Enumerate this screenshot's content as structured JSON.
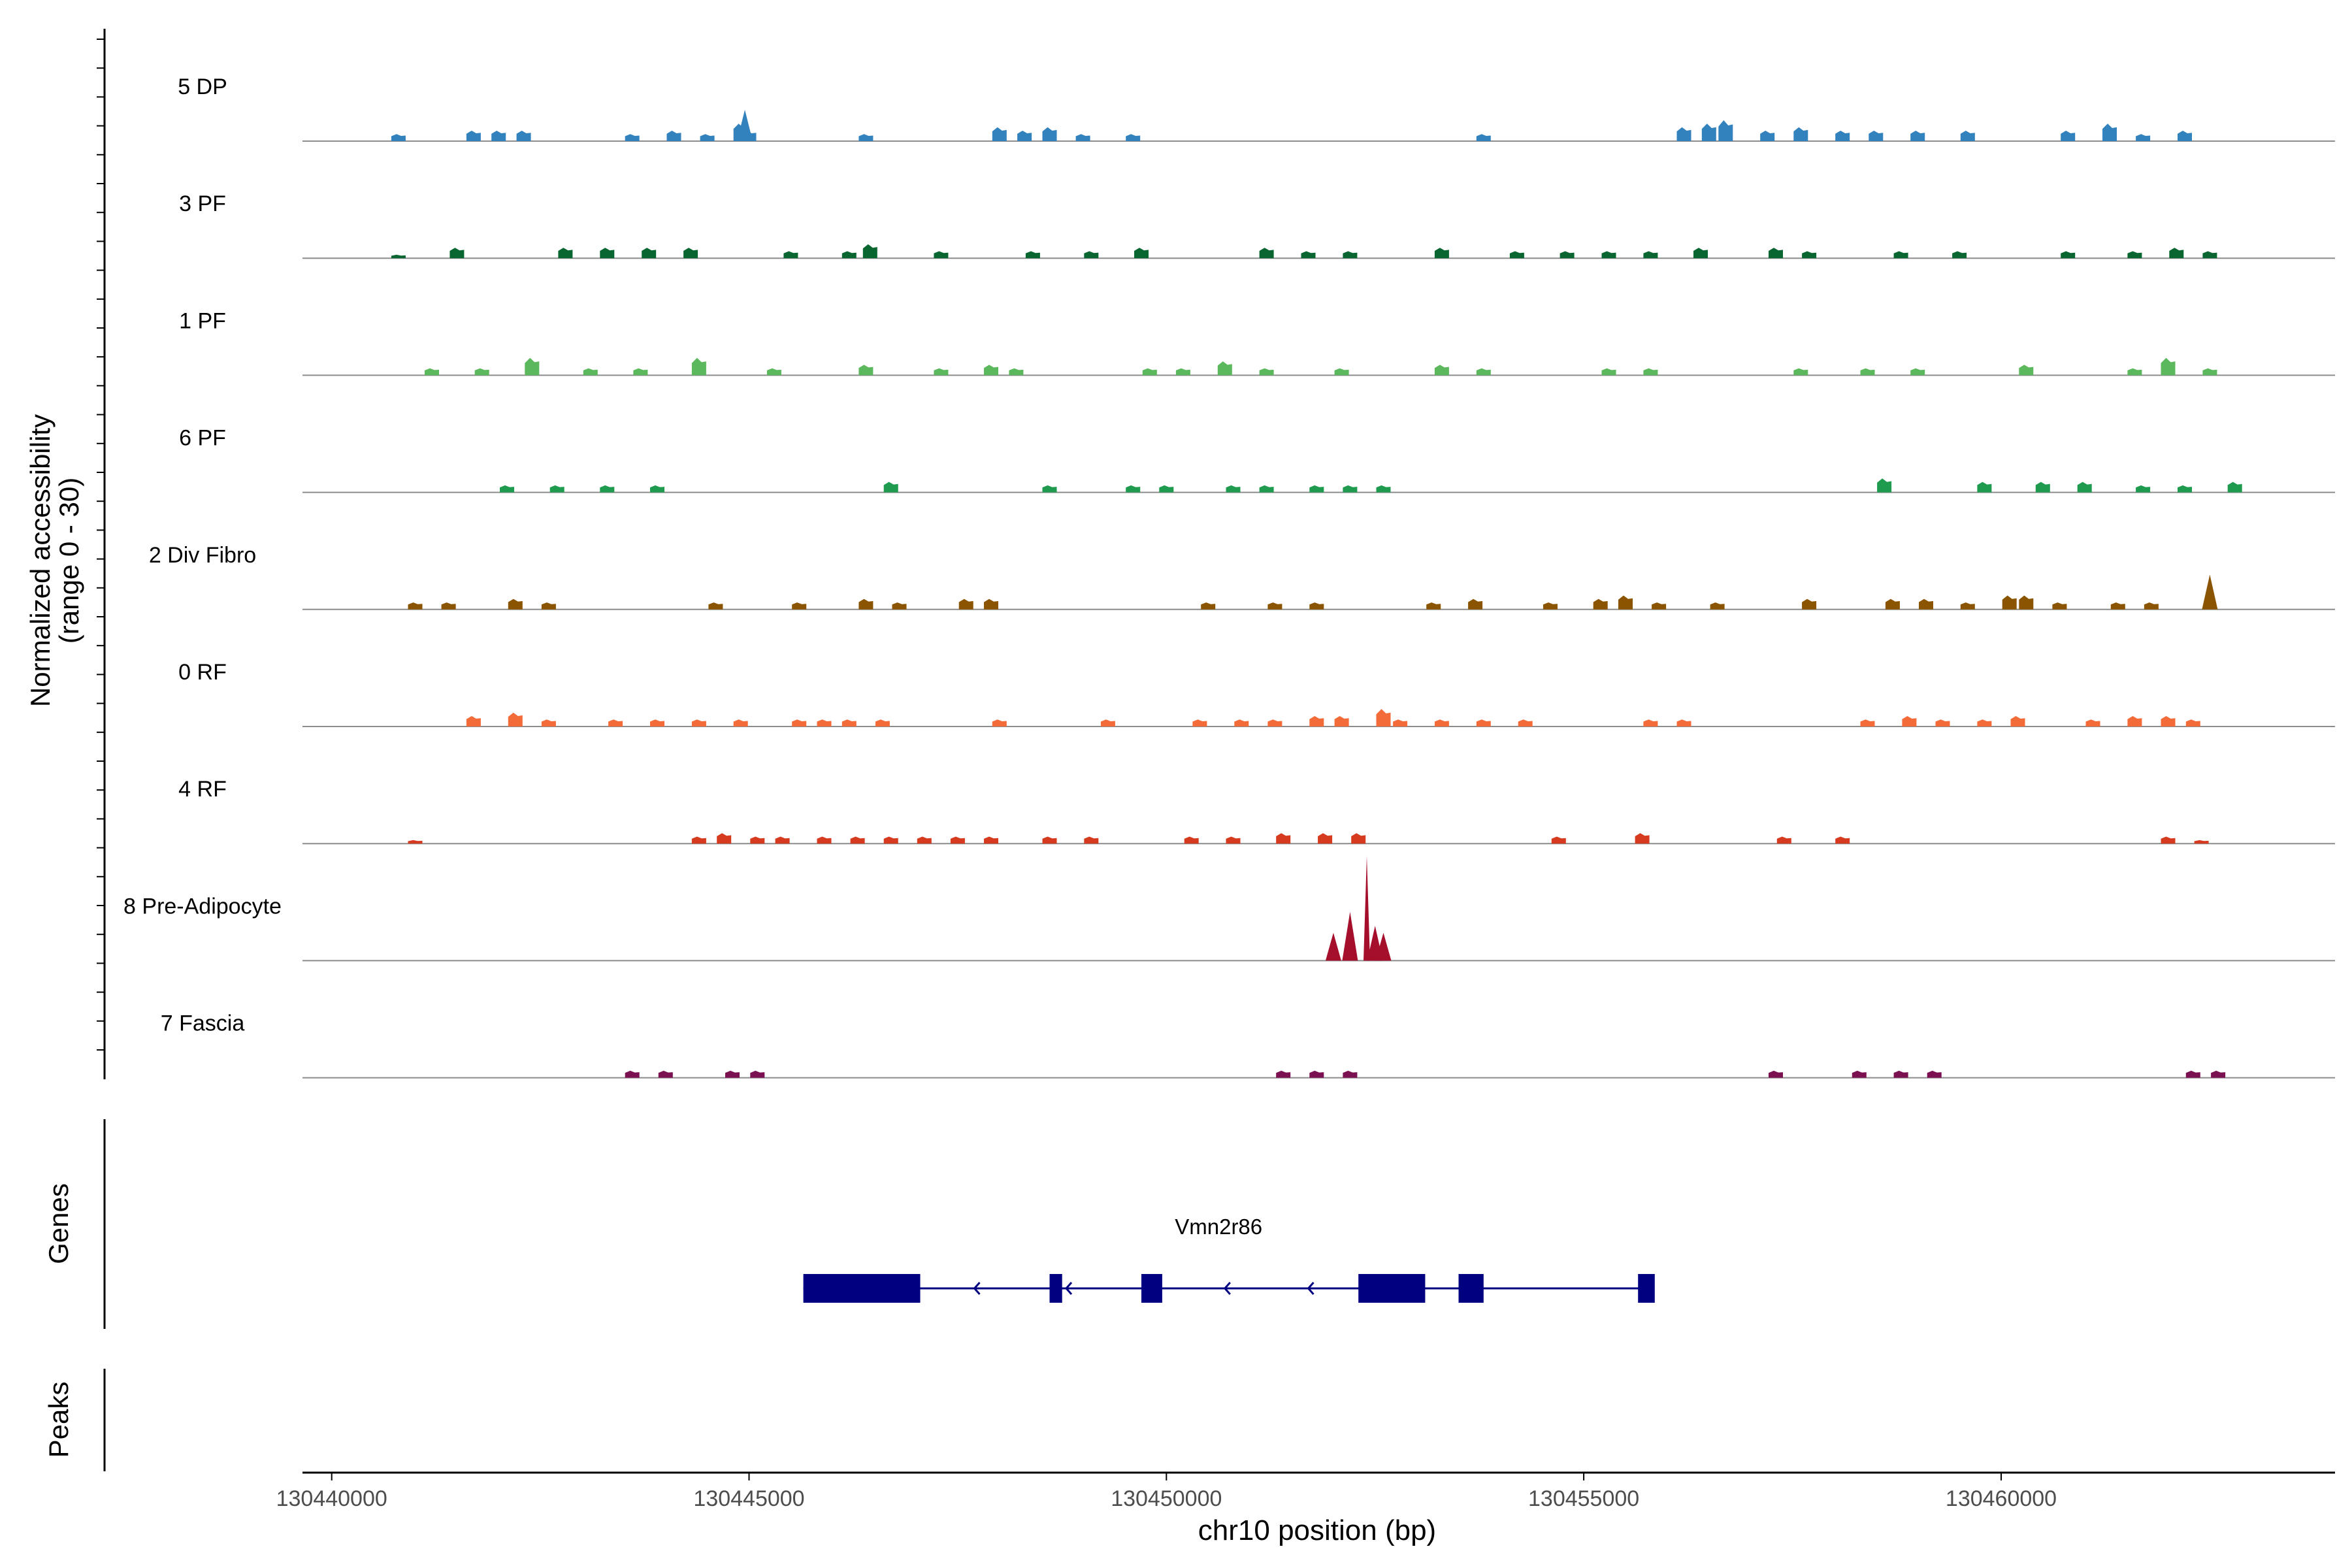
{
  "chart_data": {
    "type": "area",
    "title": "",
    "ylabel": "Normalized accessibility",
    "ylabel_range": "(range 0 - 30)",
    "ylim": [
      0,
      30
    ],
    "xlabel": "chr10 position (bp)",
    "xlim": [
      130439650,
      130464000
    ],
    "x_ticks": [
      130440000,
      130445000,
      130450000,
      130455000,
      130460000
    ],
    "x_tick_labels": [
      "130440000",
      "130445000",
      "130450000",
      "130455000",
      "130460000"
    ],
    "tracks": [
      {
        "name": "5 DP",
        "color": "#3282BD",
        "peaks": [
          [
            130440800,
            2
          ],
          [
            130441700,
            3
          ],
          [
            130442000,
            3
          ],
          [
            130442300,
            3
          ],
          [
            130443600,
            2
          ],
          [
            130444100,
            3
          ],
          [
            130444500,
            2
          ],
          [
            130444900,
            5
          ],
          [
            130444950,
            9
          ],
          [
            130445000,
            3
          ],
          [
            130446400,
            2
          ],
          [
            130448000,
            4
          ],
          [
            130448300,
            3
          ],
          [
            130448600,
            4
          ],
          [
            130449000,
            2
          ],
          [
            130449600,
            2
          ],
          [
            130453800,
            2
          ],
          [
            130456200,
            4
          ],
          [
            130456500,
            5
          ],
          [
            130456700,
            6
          ],
          [
            130457200,
            3
          ],
          [
            130457600,
            4
          ],
          [
            130458100,
            3
          ],
          [
            130458500,
            3
          ],
          [
            130459000,
            3
          ],
          [
            130459600,
            3
          ],
          [
            130460800,
            3
          ],
          [
            130461300,
            5
          ],
          [
            130461700,
            2
          ],
          [
            130462200,
            3
          ]
        ]
      },
      {
        "name": "3 PF",
        "color": "#0A6630",
        "peaks": [
          [
            130440800,
            1
          ],
          [
            130441500,
            3
          ],
          [
            130442800,
            3
          ],
          [
            130443300,
            3
          ],
          [
            130443800,
            3
          ],
          [
            130444300,
            3
          ],
          [
            130445500,
            2
          ],
          [
            130446200,
            2
          ],
          [
            130446450,
            4
          ],
          [
            130447300,
            2
          ],
          [
            130448400,
            2
          ],
          [
            130449100,
            2
          ],
          [
            130449700,
            3
          ],
          [
            130451200,
            3
          ],
          [
            130451700,
            2
          ],
          [
            130452200,
            2
          ],
          [
            130453300,
            3
          ],
          [
            130454200,
            2
          ],
          [
            130454800,
            2
          ],
          [
            130455300,
            2
          ],
          [
            130455800,
            2
          ],
          [
            130456400,
            3
          ],
          [
            130457300,
            3
          ],
          [
            130457700,
            2
          ],
          [
            130458800,
            2
          ],
          [
            130459500,
            2
          ],
          [
            130460800,
            2
          ],
          [
            130461600,
            2
          ],
          [
            130462100,
            3
          ],
          [
            130462500,
            2
          ]
        ]
      },
      {
        "name": "1 PF",
        "color": "#5CB85C",
        "peaks": [
          [
            130441200,
            2
          ],
          [
            130441800,
            2
          ],
          [
            130442400,
            5
          ],
          [
            130443100,
            2
          ],
          [
            130443700,
            2
          ],
          [
            130444400,
            5
          ],
          [
            130445300,
            2
          ],
          [
            130446400,
            3
          ],
          [
            130447300,
            2
          ],
          [
            130447900,
            3
          ],
          [
            130448200,
            2
          ],
          [
            130449800,
            2
          ],
          [
            130450200,
            2
          ],
          [
            130450700,
            4
          ],
          [
            130451200,
            2
          ],
          [
            130452100,
            2
          ],
          [
            130453300,
            3
          ],
          [
            130453800,
            2
          ],
          [
            130455300,
            2
          ],
          [
            130455800,
            2
          ],
          [
            130457600,
            2
          ],
          [
            130458400,
            2
          ],
          [
            130459000,
            2
          ],
          [
            130460300,
            3
          ],
          [
            130461600,
            2
          ],
          [
            130462000,
            5
          ],
          [
            130462500,
            2
          ]
        ]
      },
      {
        "name": "6 PF",
        "color": "#1F9B4F",
        "peaks": [
          [
            130442100,
            2
          ],
          [
            130442700,
            2
          ],
          [
            130443300,
            2
          ],
          [
            130443900,
            2
          ],
          [
            130446700,
            3
          ],
          [
            130448600,
            2
          ],
          [
            130449600,
            2
          ],
          [
            130450000,
            2
          ],
          [
            130450800,
            2
          ],
          [
            130451200,
            2
          ],
          [
            130451800,
            2
          ],
          [
            130452200,
            2
          ],
          [
            130452600,
            2
          ],
          [
            130458600,
            4
          ],
          [
            130459800,
            3
          ],
          [
            130460500,
            3
          ],
          [
            130461000,
            3
          ],
          [
            130461700,
            2
          ],
          [
            130462200,
            2
          ],
          [
            130462800,
            3
          ]
        ]
      },
      {
        "name": "2 Div Fibro",
        "color": "#8B5400",
        "peaks": [
          [
            130441000,
            2
          ],
          [
            130441400,
            2
          ],
          [
            130442200,
            3
          ],
          [
            130442600,
            2
          ],
          [
            130444600,
            2
          ],
          [
            130445600,
            2
          ],
          [
            130446400,
            3
          ],
          [
            130446800,
            2
          ],
          [
            130447600,
            3
          ],
          [
            130447900,
            3
          ],
          [
            130450500,
            2
          ],
          [
            130451300,
            2
          ],
          [
            130451800,
            2
          ],
          [
            130453200,
            2
          ],
          [
            130453700,
            3
          ],
          [
            130454600,
            2
          ],
          [
            130455200,
            3
          ],
          [
            130455500,
            4
          ],
          [
            130455900,
            2
          ],
          [
            130456600,
            2
          ],
          [
            130457700,
            3
          ],
          [
            130458700,
            3
          ],
          [
            130459100,
            3
          ],
          [
            130459600,
            2
          ],
          [
            130460100,
            4
          ],
          [
            130460300,
            4
          ],
          [
            130460700,
            2
          ],
          [
            130461400,
            2
          ],
          [
            130461800,
            2
          ],
          [
            130462500,
            10
          ]
        ]
      },
      {
        "name": "0 RF",
        "color": "#F26B38",
        "peaks": [
          [
            130441700,
            3
          ],
          [
            130442200,
            4
          ],
          [
            130442600,
            2
          ],
          [
            130443400,
            2
          ],
          [
            130443900,
            2
          ],
          [
            130444400,
            2
          ],
          [
            130444900,
            2
          ],
          [
            130445600,
            2
          ],
          [
            130445900,
            2
          ],
          [
            130446200,
            2
          ],
          [
            130446600,
            2
          ],
          [
            130448000,
            2
          ],
          [
            130449300,
            2
          ],
          [
            130450400,
            2
          ],
          [
            130450900,
            2
          ],
          [
            130451300,
            2
          ],
          [
            130451800,
            3
          ],
          [
            130452100,
            3
          ],
          [
            130452600,
            5
          ],
          [
            130452800,
            2
          ],
          [
            130453300,
            2
          ],
          [
            130453800,
            2
          ],
          [
            130454300,
            2
          ],
          [
            130455800,
            2
          ],
          [
            130456200,
            2
          ],
          [
            130458400,
            2
          ],
          [
            130458900,
            3
          ],
          [
            130459300,
            2
          ],
          [
            130459800,
            2
          ],
          [
            130460200,
            3
          ],
          [
            130461100,
            2
          ],
          [
            130461600,
            3
          ],
          [
            130462000,
            3
          ],
          [
            130462300,
            2
          ]
        ]
      },
      {
        "name": "4 RF",
        "color": "#D63A1F",
        "peaks": [
          [
            130441000,
            1
          ],
          [
            130444400,
            2
          ],
          [
            130444700,
            3
          ],
          [
            130445100,
            2
          ],
          [
            130445400,
            2
          ],
          [
            130445900,
            2
          ],
          [
            130446300,
            2
          ],
          [
            130446700,
            2
          ],
          [
            130447100,
            2
          ],
          [
            130447500,
            2
          ],
          [
            130447900,
            2
          ],
          [
            130448600,
            2
          ],
          [
            130449100,
            2
          ],
          [
            130450300,
            2
          ],
          [
            130450800,
            2
          ],
          [
            130451400,
            3
          ],
          [
            130451900,
            3
          ],
          [
            130452300,
            3
          ],
          [
            130454700,
            2
          ],
          [
            130455700,
            3
          ],
          [
            130457400,
            2
          ],
          [
            130458100,
            2
          ],
          [
            130462000,
            2
          ],
          [
            130462400,
            1
          ]
        ]
      },
      {
        "name": "8 Pre-Adipocyte",
        "color": "#A50F2B",
        "peaks": [
          [
            130452000,
            8
          ],
          [
            130452200,
            14
          ],
          [
            130452400,
            30
          ],
          [
            130452500,
            10
          ],
          [
            130452600,
            8
          ]
        ]
      },
      {
        "name": "7 Fascia",
        "color": "#7B1151",
        "peaks": [
          [
            130443600,
            2
          ],
          [
            130444000,
            2
          ],
          [
            130444800,
            2
          ],
          [
            130445100,
            2
          ],
          [
            130451400,
            2
          ],
          [
            130451800,
            2
          ],
          [
            130452200,
            2
          ],
          [
            130457300,
            2
          ],
          [
            130458300,
            2
          ],
          [
            130458800,
            2
          ],
          [
            130459200,
            2
          ],
          [
            130462300,
            2
          ],
          [
            130462600,
            2
          ]
        ]
      }
    ],
    "genes_track_label": "Genes",
    "genes": [
      {
        "name": "Vmn2r86",
        "strand": "-",
        "color": "#000080",
        "start": 130445650,
        "end": 130455800,
        "exons": [
          [
            130445650,
            130447050
          ],
          [
            130448600,
            130448750
          ],
          [
            130449700,
            130449950
          ],
          [
            130452300,
            130453100
          ],
          [
            130453500,
            130453800
          ],
          [
            130455650,
            130455850
          ]
        ],
        "arrows": [
          130447700,
          130448800,
          130449750,
          130450700,
          130451700,
          130455700
        ]
      }
    ],
    "peaks_track_label": "Peaks"
  }
}
